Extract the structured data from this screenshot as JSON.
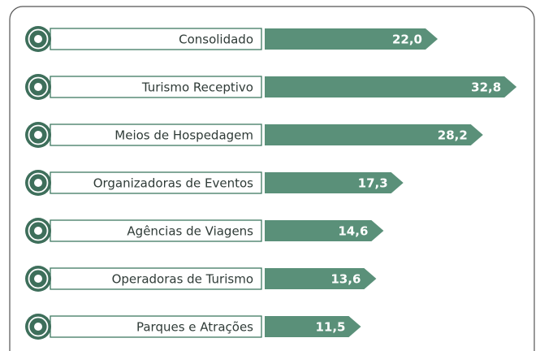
{
  "chart_data": {
    "type": "bar",
    "categories": [
      "Consolidado",
      "Turismo Receptivo",
      "Meios de Hospedagem",
      "Organizadoras de Eventos",
      "Agências de Viagens",
      "Operadoras de Turismo",
      "Parques e Atrações"
    ],
    "values": [
      22.0,
      32.8,
      28.2,
      17.3,
      14.6,
      13.6,
      11.5
    ],
    "value_labels": [
      "22,0",
      "32,8",
      "28,2",
      "17,3",
      "14,6",
      "13,6",
      "11,5"
    ],
    "color": "#5a9079",
    "xlim": [
      0,
      36
    ]
  }
}
